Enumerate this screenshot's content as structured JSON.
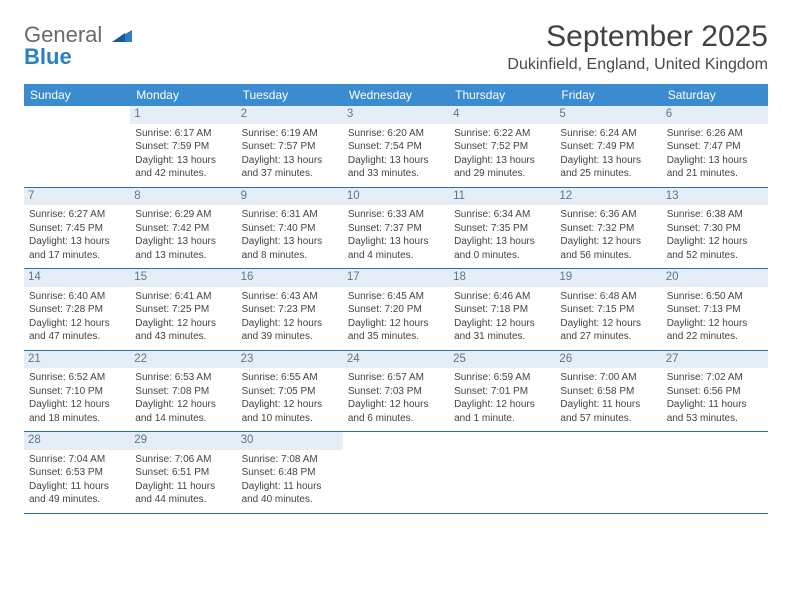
{
  "logo": {
    "line1": "General",
    "line2": "Blue"
  },
  "title": "September 2025",
  "location": "Dukinfield, England, United Kingdom",
  "colors": {
    "header_bg": "#3b8bd0",
    "header_text": "#ffffff",
    "daynum_bg": "#e5eef6",
    "daynum_text": "#57788f",
    "rule": "#2e6fa8",
    "body_text": "#444444",
    "logo_blue": "#2d7fc1"
  },
  "dayNames": [
    "Sunday",
    "Monday",
    "Tuesday",
    "Wednesday",
    "Thursday",
    "Friday",
    "Saturday"
  ],
  "weeks": [
    [
      {
        "blank": true
      },
      {
        "n": "1",
        "sunrise": "6:17 AM",
        "sunset": "7:59 PM",
        "daylight": "13 hours and 42 minutes."
      },
      {
        "n": "2",
        "sunrise": "6:19 AM",
        "sunset": "7:57 PM",
        "daylight": "13 hours and 37 minutes."
      },
      {
        "n": "3",
        "sunrise": "6:20 AM",
        "sunset": "7:54 PM",
        "daylight": "13 hours and 33 minutes."
      },
      {
        "n": "4",
        "sunrise": "6:22 AM",
        "sunset": "7:52 PM",
        "daylight": "13 hours and 29 minutes."
      },
      {
        "n": "5",
        "sunrise": "6:24 AM",
        "sunset": "7:49 PM",
        "daylight": "13 hours and 25 minutes."
      },
      {
        "n": "6",
        "sunrise": "6:26 AM",
        "sunset": "7:47 PM",
        "daylight": "13 hours and 21 minutes."
      }
    ],
    [
      {
        "n": "7",
        "sunrise": "6:27 AM",
        "sunset": "7:45 PM",
        "daylight": "13 hours and 17 minutes."
      },
      {
        "n": "8",
        "sunrise": "6:29 AM",
        "sunset": "7:42 PM",
        "daylight": "13 hours and 13 minutes."
      },
      {
        "n": "9",
        "sunrise": "6:31 AM",
        "sunset": "7:40 PM",
        "daylight": "13 hours and 8 minutes."
      },
      {
        "n": "10",
        "sunrise": "6:33 AM",
        "sunset": "7:37 PM",
        "daylight": "13 hours and 4 minutes."
      },
      {
        "n": "11",
        "sunrise": "6:34 AM",
        "sunset": "7:35 PM",
        "daylight": "13 hours and 0 minutes."
      },
      {
        "n": "12",
        "sunrise": "6:36 AM",
        "sunset": "7:32 PM",
        "daylight": "12 hours and 56 minutes."
      },
      {
        "n": "13",
        "sunrise": "6:38 AM",
        "sunset": "7:30 PM",
        "daylight": "12 hours and 52 minutes."
      }
    ],
    [
      {
        "n": "14",
        "sunrise": "6:40 AM",
        "sunset": "7:28 PM",
        "daylight": "12 hours and 47 minutes."
      },
      {
        "n": "15",
        "sunrise": "6:41 AM",
        "sunset": "7:25 PM",
        "daylight": "12 hours and 43 minutes."
      },
      {
        "n": "16",
        "sunrise": "6:43 AM",
        "sunset": "7:23 PM",
        "daylight": "12 hours and 39 minutes."
      },
      {
        "n": "17",
        "sunrise": "6:45 AM",
        "sunset": "7:20 PM",
        "daylight": "12 hours and 35 minutes."
      },
      {
        "n": "18",
        "sunrise": "6:46 AM",
        "sunset": "7:18 PM",
        "daylight": "12 hours and 31 minutes."
      },
      {
        "n": "19",
        "sunrise": "6:48 AM",
        "sunset": "7:15 PM",
        "daylight": "12 hours and 27 minutes."
      },
      {
        "n": "20",
        "sunrise": "6:50 AM",
        "sunset": "7:13 PM",
        "daylight": "12 hours and 22 minutes."
      }
    ],
    [
      {
        "n": "21",
        "sunrise": "6:52 AM",
        "sunset": "7:10 PM",
        "daylight": "12 hours and 18 minutes."
      },
      {
        "n": "22",
        "sunrise": "6:53 AM",
        "sunset": "7:08 PM",
        "daylight": "12 hours and 14 minutes."
      },
      {
        "n": "23",
        "sunrise": "6:55 AM",
        "sunset": "7:05 PM",
        "daylight": "12 hours and 10 minutes."
      },
      {
        "n": "24",
        "sunrise": "6:57 AM",
        "sunset": "7:03 PM",
        "daylight": "12 hours and 6 minutes."
      },
      {
        "n": "25",
        "sunrise": "6:59 AM",
        "sunset": "7:01 PM",
        "daylight": "12 hours and 1 minute."
      },
      {
        "n": "26",
        "sunrise": "7:00 AM",
        "sunset": "6:58 PM",
        "daylight": "11 hours and 57 minutes."
      },
      {
        "n": "27",
        "sunrise": "7:02 AM",
        "sunset": "6:56 PM",
        "daylight": "11 hours and 53 minutes."
      }
    ],
    [
      {
        "n": "28",
        "sunrise": "7:04 AM",
        "sunset": "6:53 PM",
        "daylight": "11 hours and 49 minutes."
      },
      {
        "n": "29",
        "sunrise": "7:06 AM",
        "sunset": "6:51 PM",
        "daylight": "11 hours and 44 minutes."
      },
      {
        "n": "30",
        "sunrise": "7:08 AM",
        "sunset": "6:48 PM",
        "daylight": "11 hours and 40 minutes."
      },
      {
        "blank": true
      },
      {
        "blank": true
      },
      {
        "blank": true
      },
      {
        "blank": true
      }
    ]
  ],
  "labels": {
    "sunrise": "Sunrise: ",
    "sunset": "Sunset: ",
    "daylight": "Daylight: "
  }
}
